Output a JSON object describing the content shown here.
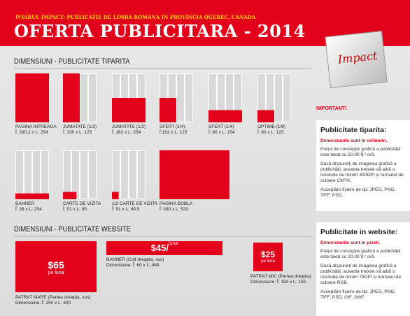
{
  "header": {
    "subtitle": "IVIARUL IMPACT: PUBLICATIE DE LIMBA ROMANA IN PROVINCIA QUEBEC, CANADA",
    "title": "OFERTA PUBLICITARA - 2014",
    "logo": "Impact"
  },
  "print": {
    "heading": "DIMENSIUNI - PUBLICITATE TIPARITA",
    "items": [
      {
        "name": "PAGINA INTREAGA",
        "size": "Î: 330,2 x L: 254"
      },
      {
        "name": "JUMATATE (1/2)",
        "size": "Î: 330 x L: 125"
      },
      {
        "name": "JUMATATE (1/2)",
        "size": "Î: 163 x L: 254"
      },
      {
        "name": "SFERT (1/4)",
        "size": "Î:163 x L: 125"
      },
      {
        "name": "SFERT (1/4)",
        "size": "Î: 80 x L: 254"
      },
      {
        "name": "OPTIME (1/8)",
        "size": "Î: 80 x L: 125"
      },
      {
        "name": "BANNER",
        "size": "Î: 38 x L: 254"
      },
      {
        "name": "CARTE DE VIZITA",
        "size": "Î: 51 x L: 95"
      },
      {
        "name": "1/2 CARTE DE VIZITA",
        "size": "Î: 51 x L: 45.5"
      },
      {
        "name": "PAGINA DUBLA",
        "size": "Î: 330 x L: 533"
      }
    ]
  },
  "web": {
    "heading": "DIMENSIUNI - PUBLICITATE WEBSITE",
    "items": [
      {
        "price": "$65",
        "unit": "pe luna",
        "name": "PATRAT MARE (Partea dreapta, sus)",
        "size": "Dimensiune: Î: 250 x L: 300"
      },
      {
        "price": "$45/",
        "unit": "luna",
        "name": "BANNER (Colt dreapta, sus)",
        "size": "Dimensiune: Î: 60 x L: 468"
      },
      {
        "price": "$25",
        "unit": "pe luna",
        "name": "PATRAT MIC (Partea dreapta)",
        "size": "Dimensiune: Î: 150 x L: 150"
      }
    ]
  },
  "sidebar": {
    "important": "IMPORTANT!",
    "print_box": {
      "title": "Publicitate tiparita:",
      "highlight": "Dimensiunile sunt in milimetri.",
      "paragraphs": [
        "Prețul de concepție grafică a publicității este taxat cu 20.00 $ / oră.",
        "Dacă dispuneți de imaginea grafică a publicității, aceasta trebuie să aibă o rezoluție de minim 300DPI și formatul de culoare CMYK.",
        "Acceptăm fișiere de tip: JPEG, PNG, TIFF, PSD."
      ]
    },
    "web_box": {
      "title": "Publicitate in website:",
      "highlight": "Dimensiunile sunt in pixeli.",
      "paragraphs": [
        "Prețul de concepție grafică a publicității este taxat cu 20.00 $ / oră.",
        "Dacă dispuneți de imaginea grafică a publicității, aceasta trebuie să aibă o rezoluție de minim 75DPI și formatul de culoare RGB.",
        "Acceptăm fișiere de tip: JPEG, PNG, TIFF, PSD, GIF, SWF."
      ]
    }
  }
}
